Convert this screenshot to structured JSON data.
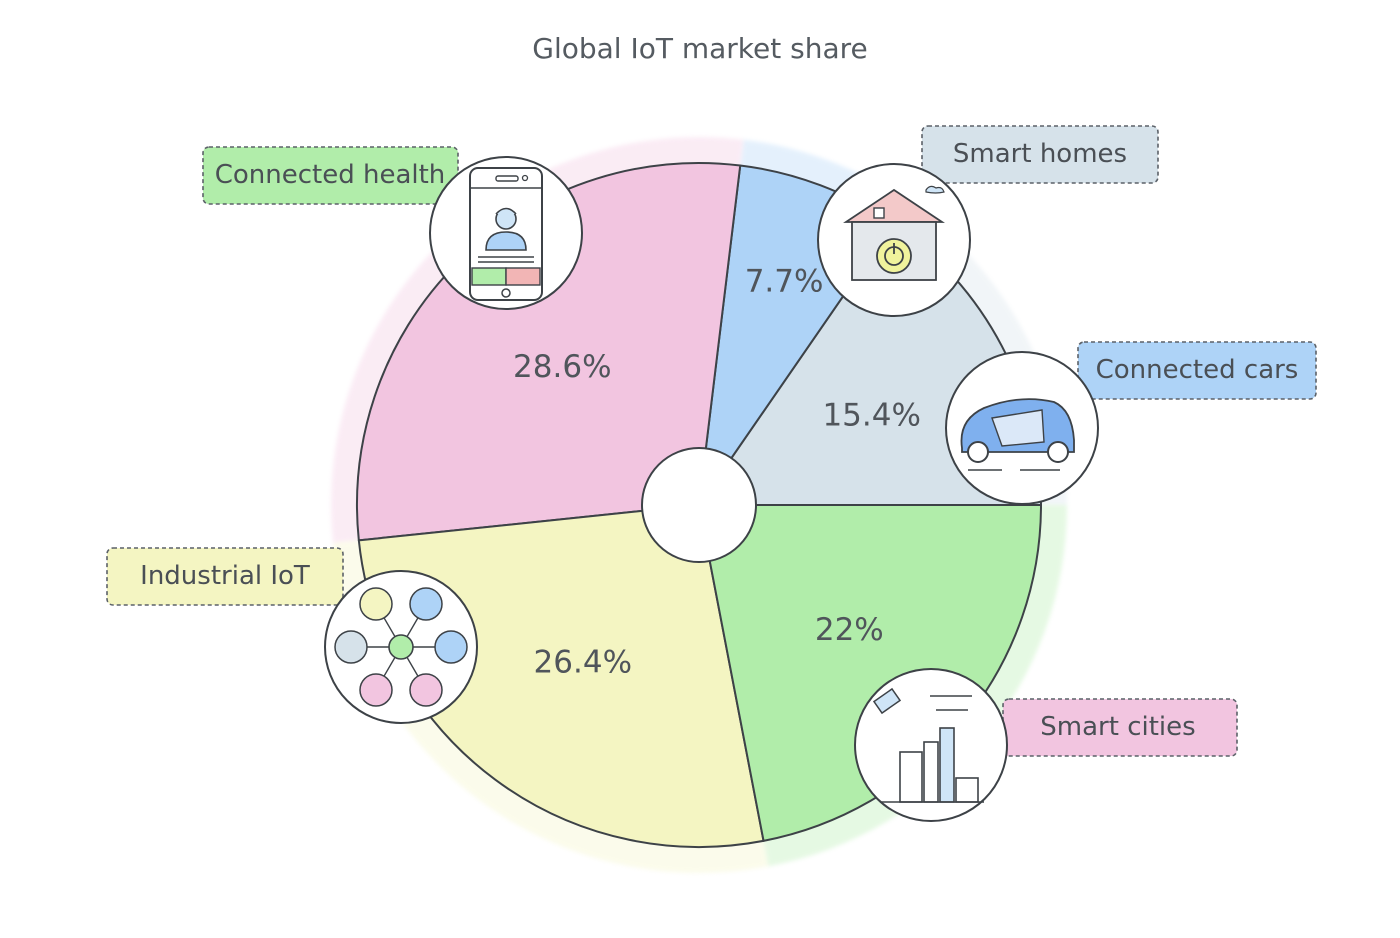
{
  "chart_data": {
    "type": "pie",
    "title": "Global IoT market share",
    "categories": [
      "Smart homes",
      "Connected cars",
      "Smart cities",
      "Industrial IoT",
      "Connected health"
    ],
    "values": [
      15.4,
      7.7,
      28.6,
      26.4,
      22
    ],
    "value_labels": [
      "15.4%",
      "7.7%",
      "28.6%",
      "26.4%",
      "22%"
    ],
    "colors": [
      "#d6e2ea",
      "#aed3f7",
      "#f2c5e0",
      "#f4f5c2",
      "#b1edaa"
    ],
    "icons": [
      "smart-home-icon",
      "car-icon",
      "city-icon",
      "network-icon",
      "doctor-phone-icon"
    ]
  }
}
